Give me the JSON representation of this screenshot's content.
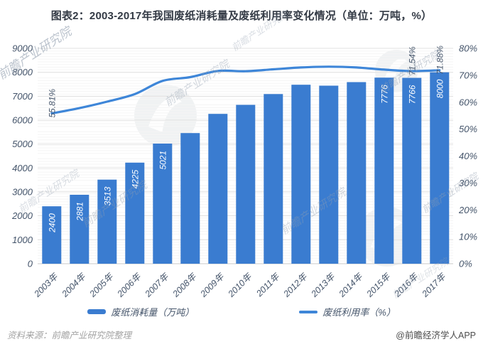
{
  "title": "图表2：2003-2017年我国废纸消耗量及废纸利用率变化情况（单位：万吨，%）",
  "chart_data": {
    "type": "bar",
    "subtype": "bar-line-combo",
    "categories": [
      "2003年",
      "2004年",
      "2005年",
      "2006年",
      "2007年",
      "2008年",
      "2009年",
      "2010年",
      "2011年",
      "2012年",
      "2013年",
      "2014年",
      "2015年",
      "2016年",
      "2017年"
    ],
    "series": [
      {
        "name": "废纸消耗量（万吨）",
        "type": "bar",
        "axis": "left",
        "values": [
          2400,
          2881,
          3513,
          4225,
          5021,
          5460,
          6260,
          6640,
          7090,
          7480,
          7440,
          7590,
          7776,
          7766,
          8000
        ],
        "data_labels": [
          "2400",
          "2881",
          "3513",
          "4225",
          "5021",
          "",
          "",
          "",
          "",
          "",
          "",
          "",
          "7776",
          "7766",
          "8000"
        ]
      },
      {
        "name": "废纸利用率（%）",
        "type": "line",
        "axis": "right",
        "values": [
          55.81,
          57.8,
          60.2,
          63.0,
          67.9,
          69.3,
          71.6,
          71.5,
          72.2,
          72.9,
          73.2,
          72.9,
          72.1,
          71.54,
          71.88
        ],
        "data_labels": [
          "55.81%",
          "",
          "",
          "",
          "",
          "",
          "",
          "",
          "",
          "",
          "",
          "",
          "",
          "71.54%",
          "71.88%"
        ]
      }
    ],
    "left_axis": {
      "min": 0,
      "max": 9000,
      "step": 1000,
      "tick_labels": [
        "0",
        "1000",
        "2000",
        "3000",
        "4000",
        "5000",
        "6000",
        "7000",
        "8000",
        "9000"
      ]
    },
    "right_axis": {
      "min": 0,
      "max": 80,
      "step": 10,
      "tick_labels": [
        "0%",
        "10%",
        "20%",
        "30%",
        "40%",
        "50%",
        "60%",
        "70%",
        "80%"
      ]
    },
    "grid": true,
    "legend_position": "bottom"
  },
  "colors": {
    "bar": "#3A7CD0",
    "line": "#3E86D8",
    "bar_label": "#ffffff",
    "rate_label": "#44546A",
    "axis_text": "#44546A",
    "title_text": "#333a45",
    "grid_major": "#e2e2e2",
    "grid_minor": "#f5f5f5",
    "axis_line": "#d4d4d4",
    "watermark": "#93a0b0",
    "watermark_circle": "#ebedef",
    "background": "#ffffff"
  },
  "legend": {
    "items": [
      {
        "label": "废纸消耗量（万吨）",
        "swatch": "bar"
      },
      {
        "label": "废纸利用率（%）",
        "swatch": "line"
      }
    ]
  },
  "footer": {
    "source": "资料来源：前瞻产业研究院整理",
    "brand": "@前瞻经济学人APP"
  },
  "watermark": {
    "text": "前瞻产业研究院"
  }
}
